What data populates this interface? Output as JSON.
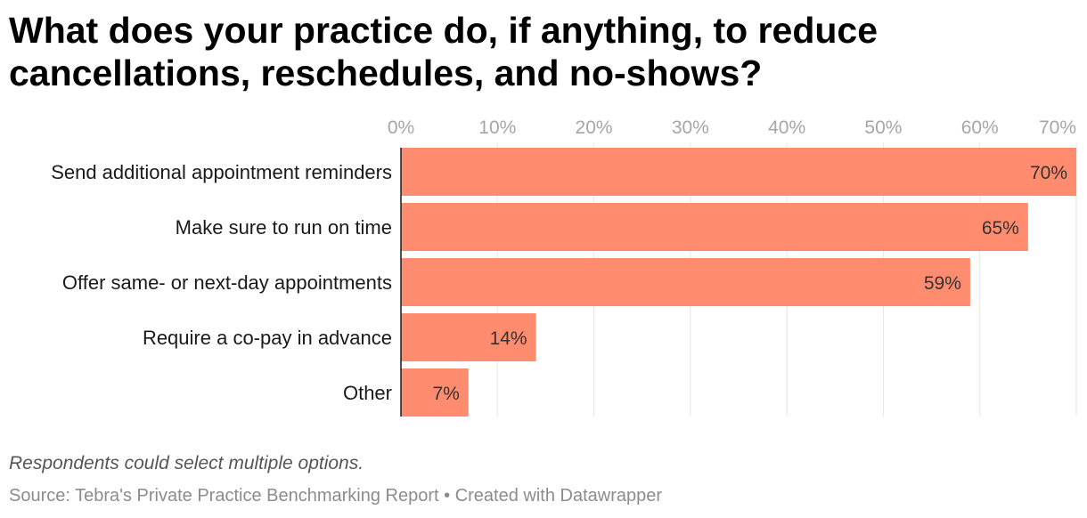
{
  "title": "What does your practice do, if anything, to reduce cancellations, reschedules, and no-shows?",
  "note": "Respondents could select multiple options.",
  "footer": {
    "source": "Source: Tebra's Private Practice Benchmarking Report",
    "separator": " • ",
    "credit": "Created with Datawrapper"
  },
  "colors": {
    "bar": "#ff8c6e",
    "grid": "#e6e6e6",
    "axis": "#1a1a1a"
  },
  "chart_data": {
    "type": "bar",
    "orientation": "horizontal",
    "title": "What does your practice do, if anything, to reduce cancellations, reschedules, and no-shows?",
    "xlabel": "",
    "ylabel": "",
    "xlim": [
      0,
      70
    ],
    "xticks": [
      0,
      10,
      20,
      30,
      40,
      50,
      60,
      70
    ],
    "tick_labels": [
      "0%",
      "10%",
      "20%",
      "30%",
      "40%",
      "50%",
      "60%",
      "70%"
    ],
    "grid": true,
    "categories": [
      "Send additional appointment reminders",
      "Make sure to run on time",
      "Offer same- or next-day appointments",
      "Require a co-pay in advance",
      "Other"
    ],
    "values": [
      70,
      65,
      59,
      14,
      7
    ],
    "value_labels": [
      "70%",
      "65%",
      "59%",
      "14%",
      "7%"
    ]
  }
}
